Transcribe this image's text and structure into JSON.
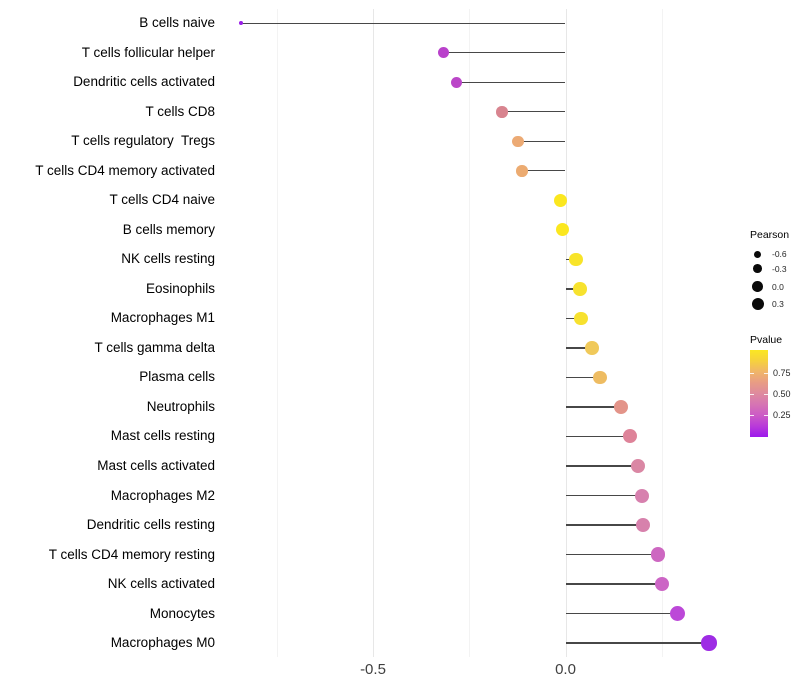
{
  "chart_data": {
    "type": "scatter",
    "variant": "lollipop",
    "orientation": "horizontal",
    "title": "",
    "xlabel": "",
    "ylabel": "",
    "x_axis": {
      "range": [
        -0.9,
        0.44
      ],
      "major_ticks": [
        -0.5,
        0.0
      ],
      "tick_labels": [
        "-0.5",
        "0.0"
      ],
      "minor_gridlines": [
        -0.75,
        -0.25,
        0.25
      ],
      "grid": "on"
    },
    "rows": [
      {
        "label": "B cells naive",
        "pearson": -0.843,
        "pvalue": 0.02,
        "color": "#9a1fe8",
        "size": 4.5
      },
      {
        "label": "T cells follicular helper",
        "pearson": -0.316,
        "pvalue": 0.15,
        "color": "#b941cb",
        "size": 11
      },
      {
        "label": "Dendritic cells activated",
        "pearson": -0.282,
        "pvalue": 0.17,
        "color": "#bb46c8",
        "size": 11
      },
      {
        "label": "T cells CD8",
        "pearson": -0.165,
        "pvalue": 0.45,
        "color": "#d8848f",
        "size": 11.5
      },
      {
        "label": "T cells regulatory  Tregs",
        "pearson": -0.123,
        "pvalue": 0.65,
        "color": "#ecaa74",
        "size": 11.5
      },
      {
        "label": "T cells CD4 memory activated",
        "pearson": -0.113,
        "pvalue": 0.66,
        "color": "#ecab71",
        "size": 11.5
      },
      {
        "label": "T cells CD4 naive",
        "pearson": -0.014,
        "pvalue": 0.97,
        "color": "#fbe71f",
        "size": 13
      },
      {
        "label": "B cells memory",
        "pearson": -0.009,
        "pvalue": 0.97,
        "color": "#fbe71f",
        "size": 13
      },
      {
        "label": "NK cells resting",
        "pearson": 0.027,
        "pvalue": 0.92,
        "color": "#f8e429",
        "size": 13.5
      },
      {
        "label": "Eosinophils",
        "pearson": 0.038,
        "pvalue": 0.9,
        "color": "#f7e22e",
        "size": 13.5
      },
      {
        "label": "Macrophages M1",
        "pearson": 0.04,
        "pvalue": 0.9,
        "color": "#f7e12f",
        "size": 13.5
      },
      {
        "label": "T cells gamma delta",
        "pearson": 0.069,
        "pvalue": 0.78,
        "color": "#f0c95a",
        "size": 13.5
      },
      {
        "label": "Plasma cells",
        "pearson": 0.09,
        "pvalue": 0.72,
        "color": "#eebc62",
        "size": 13.5
      },
      {
        "label": "Neutrophils",
        "pearson": 0.144,
        "pvalue": 0.52,
        "color": "#e39489",
        "size": 14
      },
      {
        "label": "Mast cells resting",
        "pearson": 0.168,
        "pvalue": 0.44,
        "color": "#de8399",
        "size": 14
      },
      {
        "label": "Mast cells activated",
        "pearson": 0.188,
        "pvalue": 0.42,
        "color": "#da87a4",
        "size": 14
      },
      {
        "label": "Macrophages M2",
        "pearson": 0.199,
        "pvalue": 0.4,
        "color": "#d780ae",
        "size": 14
      },
      {
        "label": "Dendritic cells resting",
        "pearson": 0.201,
        "pvalue": 0.4,
        "color": "#d781ac",
        "size": 14
      },
      {
        "label": "T cells CD4 memory resting",
        "pearson": 0.24,
        "pvalue": 0.3,
        "color": "#cd67c1",
        "size": 14.5
      },
      {
        "label": "NK cells activated",
        "pearson": 0.251,
        "pvalue": 0.29,
        "color": "#cc65c5",
        "size": 14.5
      },
      {
        "label": "Monocytes",
        "pearson": 0.29,
        "pvalue": 0.18,
        "color": "#bc48d8",
        "size": 15
      },
      {
        "label": "Macrophages M0",
        "pearson": 0.373,
        "pvalue": 0.07,
        "color": "#9e2ce4",
        "size": 15.5
      }
    ],
    "legends": {
      "pearson": {
        "title": "Pearson",
        "position": "right",
        "entries": [
          {
            "label": "-0.6",
            "size": 7
          },
          {
            "label": "-0.3",
            "size": 8.7
          },
          {
            "label": "0.0",
            "size": 10.7
          },
          {
            "label": "0.3",
            "size": 12
          }
        ],
        "dot_color": "#0a0a0a"
      },
      "pvalue": {
        "title": "Pvalue",
        "position": "right",
        "ticks": [
          {
            "value": 0.75,
            "label": "0.75"
          },
          {
            "value": 0.5,
            "label": "0.50"
          },
          {
            "value": 0.25,
            "label": "0.25"
          }
        ],
        "gradient_stops": [
          {
            "p": 1.0,
            "color": "#fbe723"
          },
          {
            "p": 0.875,
            "color": "#f6d13d"
          },
          {
            "p": 0.75,
            "color": "#f0b569"
          },
          {
            "p": 0.625,
            "color": "#e89c85"
          },
          {
            "p": 0.5,
            "color": "#de8a9e"
          },
          {
            "p": 0.375,
            "color": "#d674b3"
          },
          {
            "p": 0.25,
            "color": "#cc5bc6"
          },
          {
            "p": 0.125,
            "color": "#b93ad9"
          },
          {
            "p": 0.0,
            "color": "#9c18ec"
          }
        ]
      }
    },
    "stem_color": "#474747"
  }
}
